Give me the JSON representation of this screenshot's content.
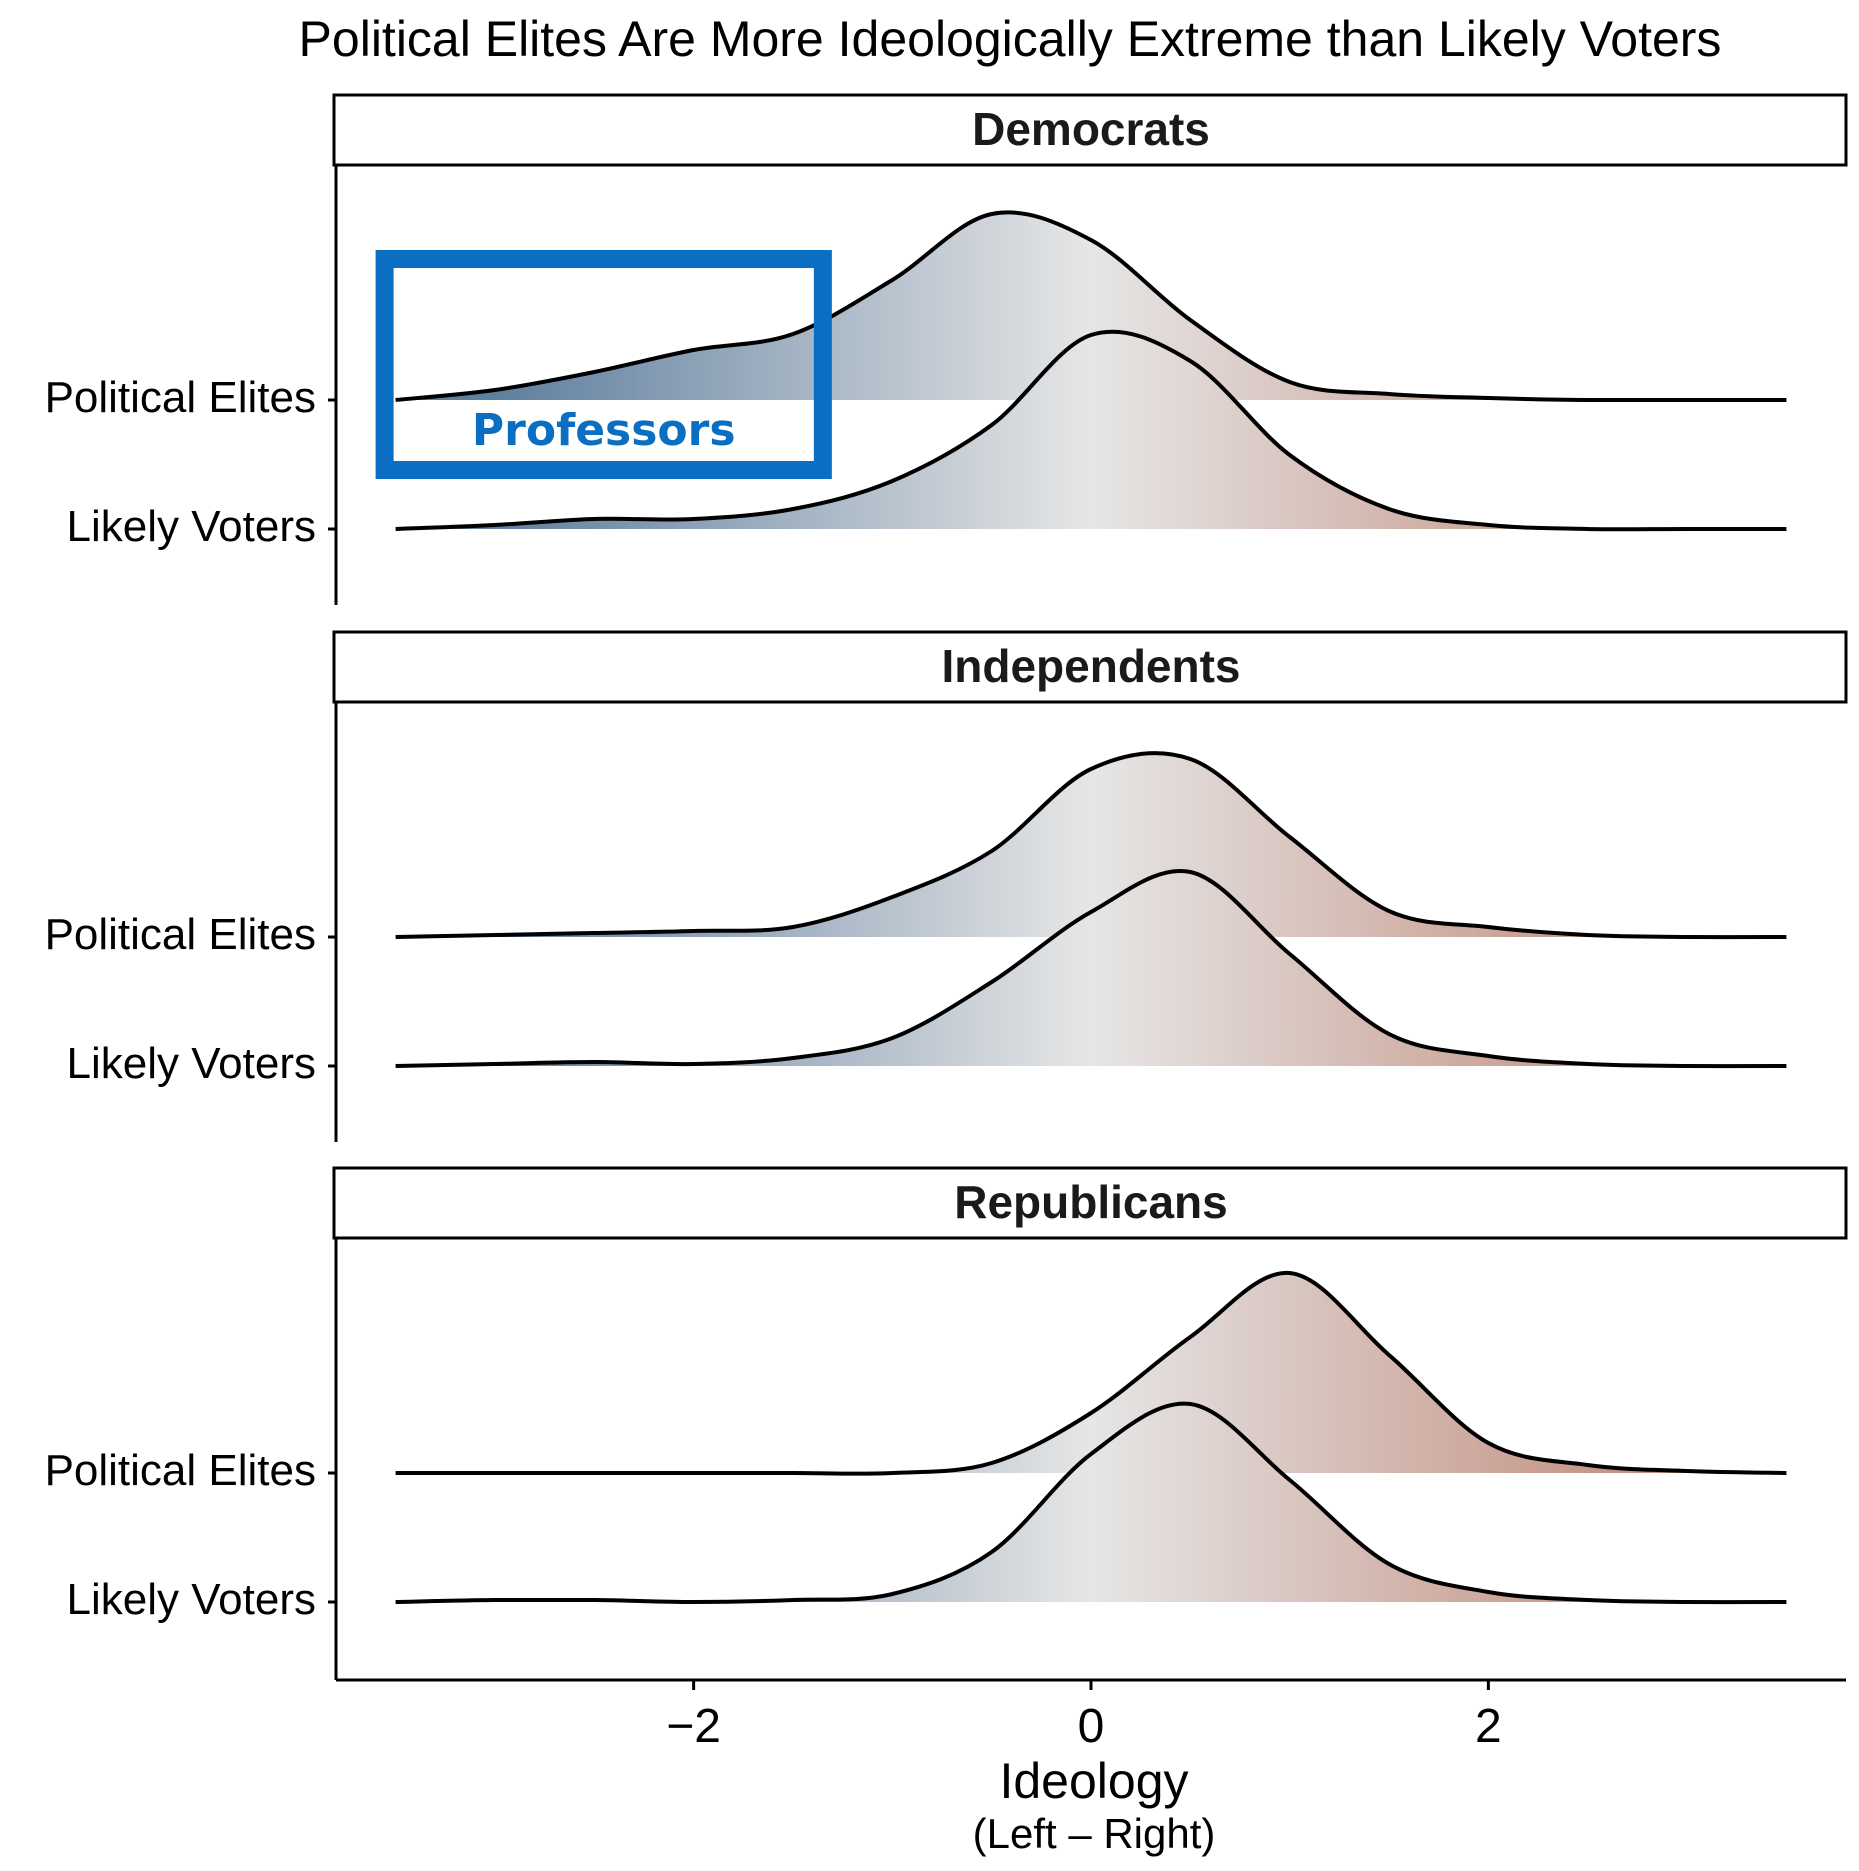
{
  "chart_data": {
    "type": "ridgeline",
    "title": "Political Elites Are More Ideologically Extreme than Likely Voters",
    "xlabel": "Ideology",
    "xlabel_sub": "(Left – Right)",
    "xlim": [
      -3.8,
      3.8
    ],
    "xticks": [
      -2,
      0,
      2
    ],
    "xtick_labels": [
      "−2",
      "0",
      "2"
    ],
    "colors": {
      "left": "#5f7f9f",
      "center": "#e6e6e6",
      "right": "#c08878"
    },
    "x": [
      -3.5,
      -3.0,
      -2.5,
      -2.0,
      -1.5,
      -1.0,
      -0.5,
      0.0,
      0.5,
      1.0,
      1.5,
      2.0,
      2.5,
      3.0,
      3.5
    ],
    "panels": [
      {
        "name": "Democrats",
        "series": [
          {
            "name": "Political Elites",
            "values": [
              0.0,
              0.05,
              0.14,
              0.25,
              0.33,
              0.6,
              0.93,
              0.8,
              0.4,
              0.09,
              0.03,
              0.01,
              0.0,
              0.0,
              0.0
            ]
          },
          {
            "name": "Likely Voters",
            "values": [
              0.0,
              0.02,
              0.05,
              0.05,
              0.1,
              0.24,
              0.52,
              0.97,
              0.84,
              0.37,
              0.1,
              0.02,
              0.0,
              0.0,
              0.0
            ]
          }
        ]
      },
      {
        "name": "Independents",
        "series": [
          {
            "name": "Political Elites",
            "values": [
              0.0,
              0.01,
              0.02,
              0.03,
              0.05,
              0.2,
              0.43,
              0.84,
              0.89,
              0.5,
              0.13,
              0.05,
              0.01,
              0.0,
              0.0
            ]
          },
          {
            "name": "Likely Voters",
            "values": [
              0.0,
              0.01,
              0.02,
              0.01,
              0.04,
              0.14,
              0.42,
              0.77,
              0.97,
              0.56,
              0.16,
              0.05,
              0.01,
              0.0,
              0.0
            ]
          }
        ]
      },
      {
        "name": "Republicans",
        "series": [
          {
            "name": "Political Elites",
            "values": [
              0.0,
              0.0,
              0.0,
              0.0,
              0.0,
              0.0,
              0.05,
              0.3,
              0.68,
              1.0,
              0.59,
              0.15,
              0.04,
              0.01,
              0.0
            ]
          },
          {
            "name": "Likely Voters",
            "values": [
              0.0,
              0.01,
              0.01,
              0.0,
              0.01,
              0.04,
              0.25,
              0.74,
              0.99,
              0.61,
              0.19,
              0.05,
              0.01,
              0.0,
              0.0
            ]
          }
        ]
      }
    ],
    "annotation": {
      "label": "Professors",
      "color": "#0a6ec2",
      "x_range": [
        -3.5,
        -1.4
      ]
    }
  }
}
